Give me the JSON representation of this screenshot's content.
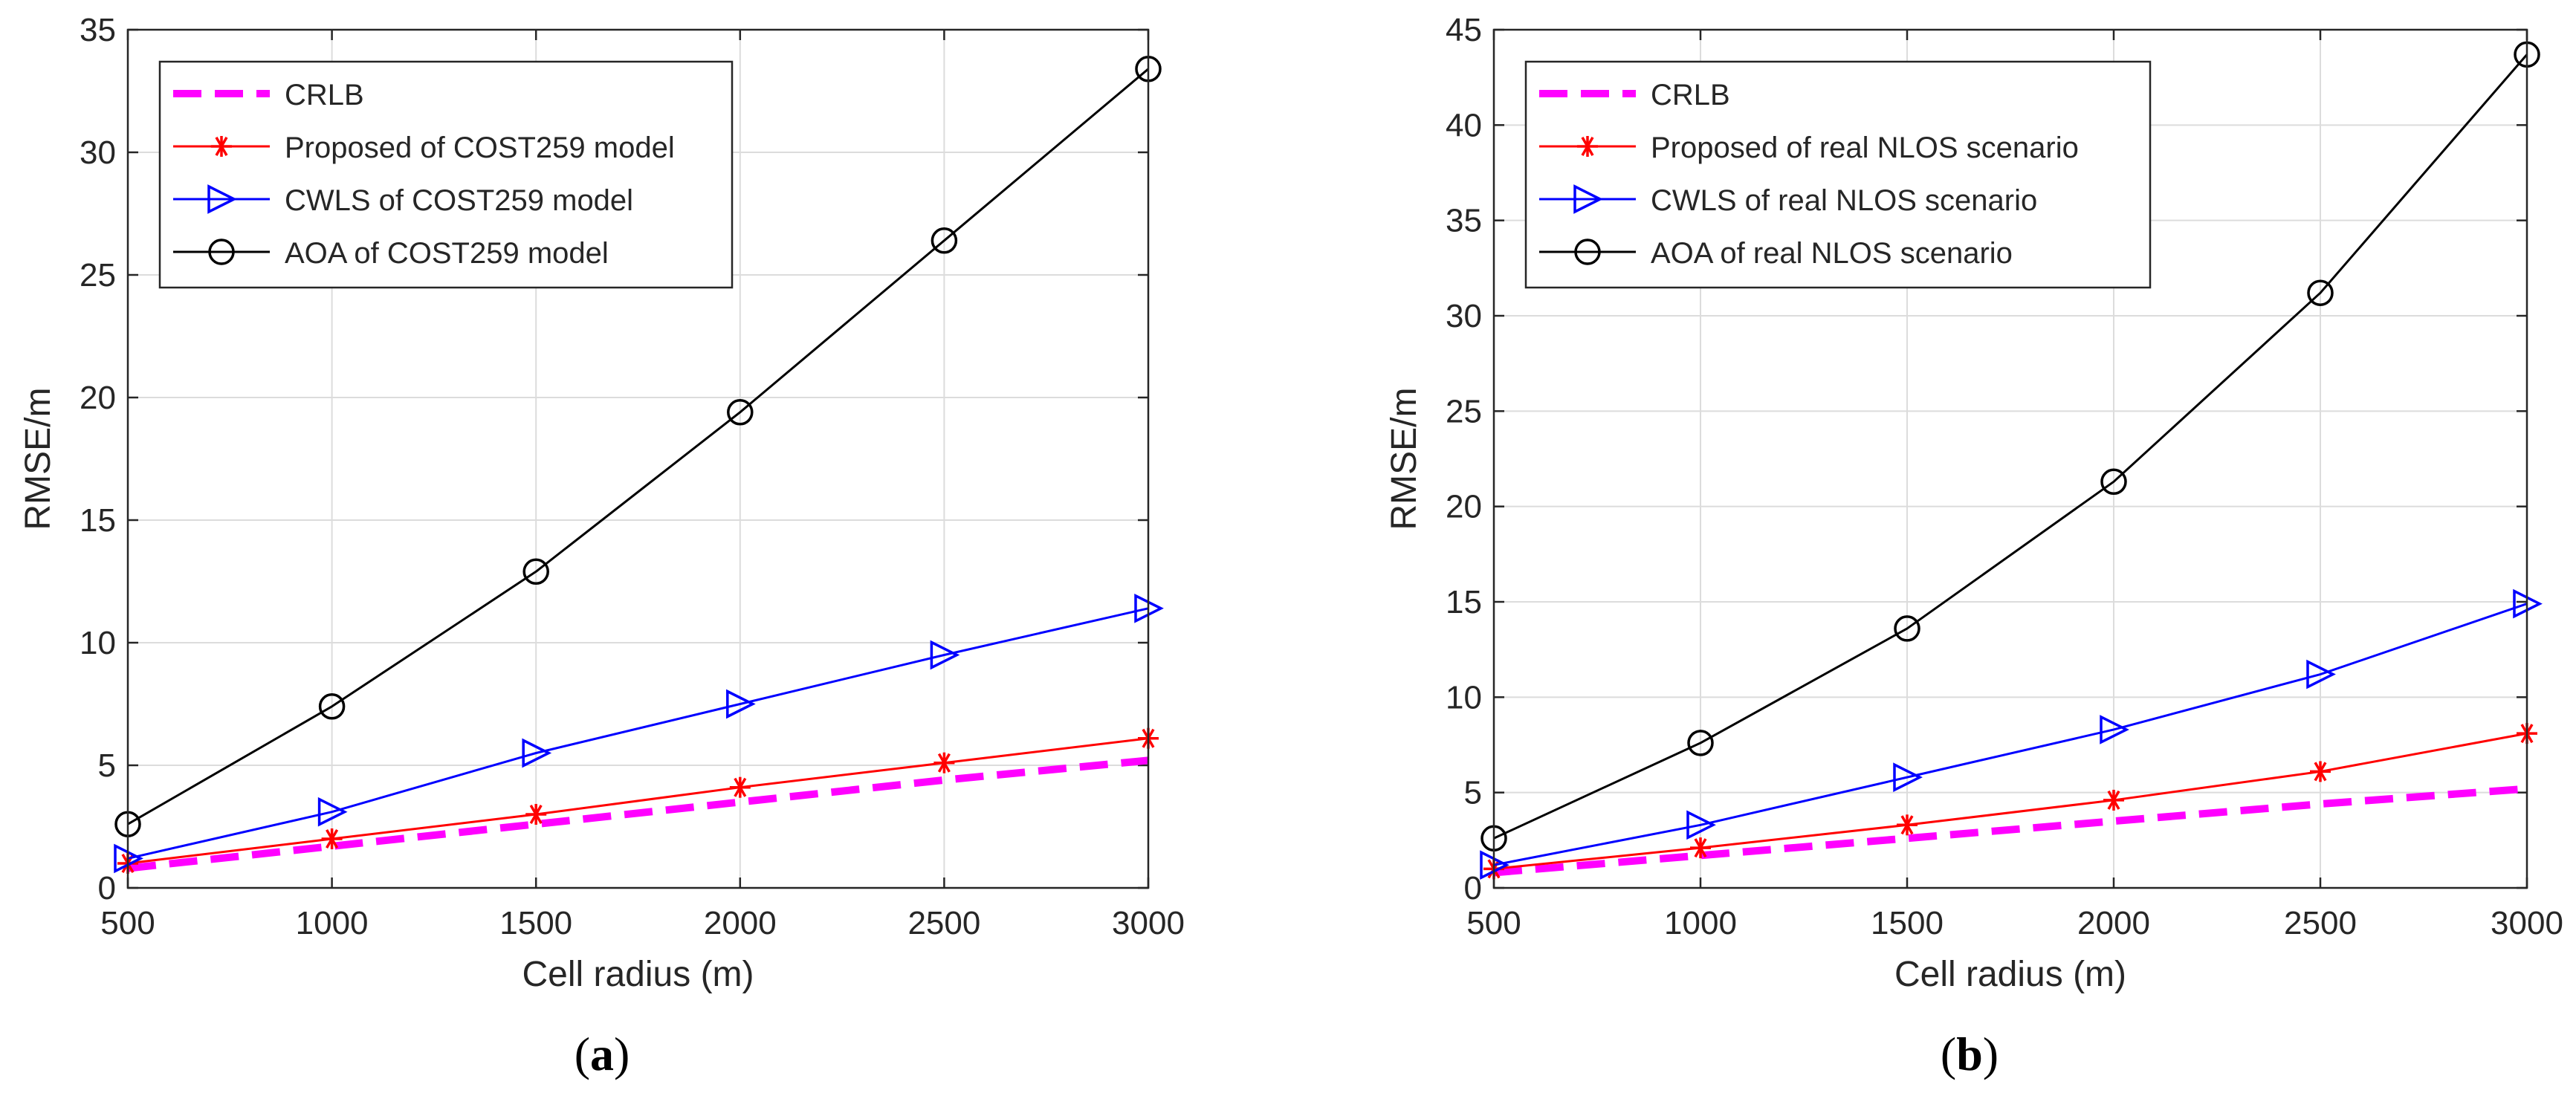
{
  "chart_data": [
    {
      "type": "line",
      "panel_label": "a",
      "xlabel": "Cell radius (m)",
      "ylabel": "RMSE/m",
      "xlim": [
        500,
        3000
      ],
      "ylim": [
        0,
        35
      ],
      "xticks": [
        500,
        1000,
        1500,
        2000,
        2500,
        3000
      ],
      "yticks": [
        0,
        5,
        10,
        15,
        20,
        25,
        30,
        35
      ],
      "grid": true,
      "legend_position": "top-left",
      "x": [
        500,
        1000,
        1500,
        2000,
        2500,
        3000
      ],
      "series": [
        {
          "name": "CRLB",
          "values": [
            0.8,
            1.7,
            2.6,
            3.5,
            4.4,
            5.2
          ],
          "color": "#ff00ff",
          "marker": "none",
          "style": "dashed"
        },
        {
          "name": "Proposed of COST259 model",
          "values": [
            1.0,
            2.0,
            3.0,
            4.1,
            5.1,
            6.1
          ],
          "color": "#ff0000",
          "marker": "asterisk",
          "style": "solid"
        },
        {
          "name": "CWLS of COST259 model",
          "values": [
            1.2,
            3.1,
            5.5,
            7.5,
            9.5,
            11.4
          ],
          "color": "#0000ff",
          "marker": "triangle-right",
          "style": "solid"
        },
        {
          "name": "AOA of COST259 model",
          "values": [
            2.6,
            7.4,
            12.9,
            19.4,
            26.4,
            33.4
          ],
          "color": "#000000",
          "marker": "circle",
          "style": "solid"
        }
      ]
    },
    {
      "type": "line",
      "panel_label": "b",
      "xlabel": "Cell radius (m)",
      "ylabel": "RMSE/m",
      "xlim": [
        500,
        3000
      ],
      "ylim": [
        0,
        45
      ],
      "xticks": [
        500,
        1000,
        1500,
        2000,
        2500,
        3000
      ],
      "yticks": [
        0,
        5,
        10,
        15,
        20,
        25,
        30,
        35,
        40,
        45
      ],
      "grid": true,
      "legend_position": "top-left",
      "x": [
        500,
        1000,
        1500,
        2000,
        2500,
        3000
      ],
      "series": [
        {
          "name": "CRLB",
          "values": [
            0.8,
            1.7,
            2.6,
            3.5,
            4.4,
            5.2
          ],
          "color": "#ff00ff",
          "marker": "none",
          "style": "dashed"
        },
        {
          "name": "Proposed of real NLOS scenario",
          "values": [
            1.0,
            2.1,
            3.3,
            4.6,
            6.1,
            8.1
          ],
          "color": "#ff0000",
          "marker": "asterisk",
          "style": "solid"
        },
        {
          "name": "CWLS of real NLOS scenario",
          "values": [
            1.2,
            3.3,
            5.8,
            8.3,
            11.2,
            14.9
          ],
          "color": "#0000ff",
          "marker": "triangle-right",
          "style": "solid"
        },
        {
          "name": "AOA of real NLOS scenario",
          "values": [
            2.6,
            7.6,
            13.6,
            21.3,
            31.2,
            43.7
          ],
          "color": "#000000",
          "marker": "circle",
          "style": "solid"
        }
      ]
    }
  ]
}
